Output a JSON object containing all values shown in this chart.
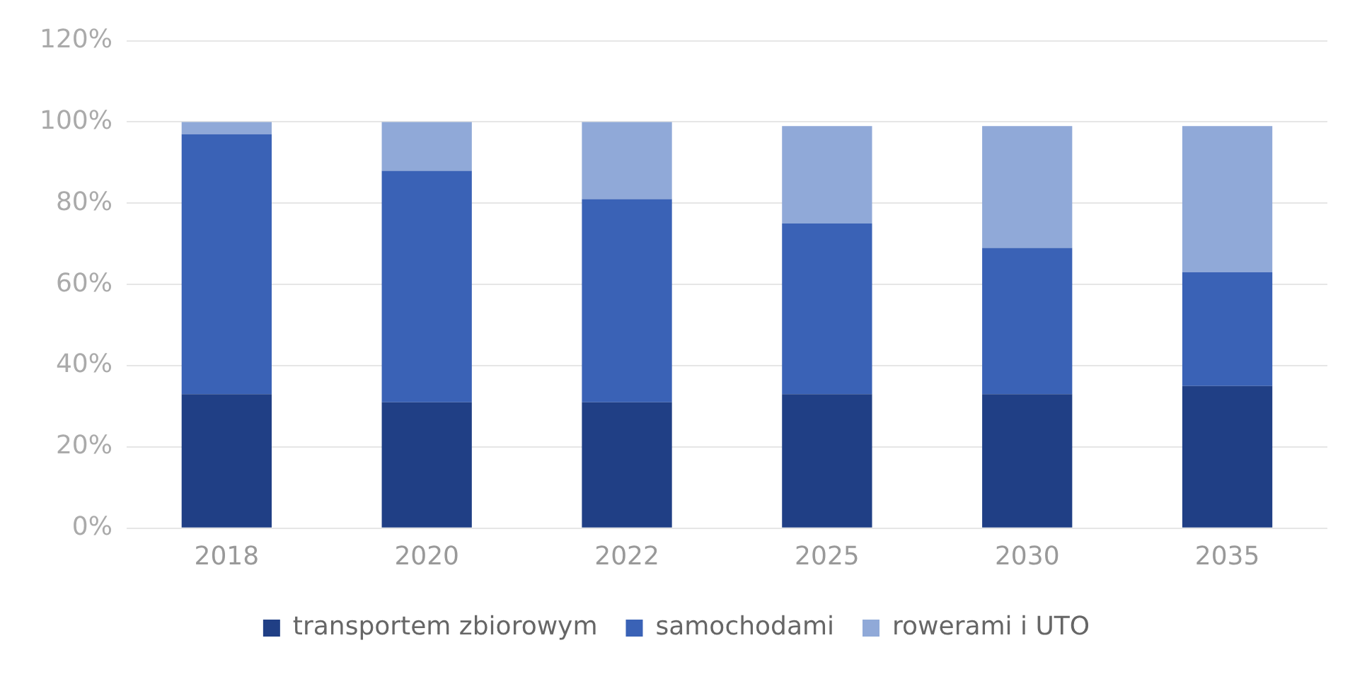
{
  "chart_data": {
    "type": "bar",
    "stacked": true,
    "categories": [
      "2018",
      "2020",
      "2022",
      "2025",
      "2030",
      "2035"
    ],
    "series": [
      {
        "name": "transportem zbiorowym",
        "color": "#203f85",
        "values": [
          33,
          31,
          31,
          33,
          33,
          35
        ]
      },
      {
        "name": "samochodami",
        "color": "#3a62b6",
        "values": [
          64,
          57,
          50,
          42,
          36,
          28
        ]
      },
      {
        "name": "rowerami i UTO",
        "color": "#90a9d8",
        "values": [
          3,
          12,
          19,
          24,
          30,
          36
        ]
      }
    ],
    "ylim": [
      0,
      120
    ],
    "yticks": [
      {
        "value": 0,
        "label": "0%"
      },
      {
        "value": 20,
        "label": "20%"
      },
      {
        "value": 40,
        "label": "40%"
      },
      {
        "value": 60,
        "label": "60%"
      },
      {
        "value": 80,
        "label": "80%"
      },
      {
        "value": 100,
        "label": "100%"
      },
      {
        "value": 120,
        "label": "120%"
      }
    ],
    "grid": "y",
    "legend": "bottom"
  }
}
